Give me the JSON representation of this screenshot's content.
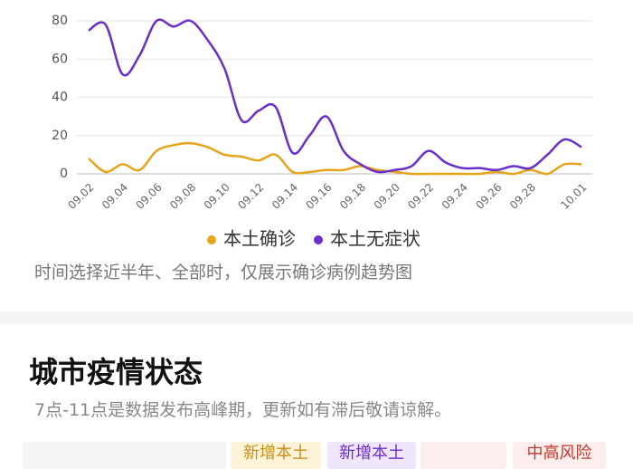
{
  "chart_data": {
    "type": "line",
    "categories": [
      "09.02",
      null,
      "09.04",
      null,
      "09.06",
      null,
      "09.08",
      null,
      "09.10",
      null,
      "09.12",
      null,
      "09.14",
      null,
      "09.16",
      null,
      "09.18",
      null,
      "09.20",
      null,
      "09.22",
      null,
      "09.24",
      null,
      "09.26",
      null,
      "09.28",
      null,
      null,
      "10.01"
    ],
    "series": [
      {
        "name": "本土确诊",
        "color": "#e6a519",
        "values": [
          8,
          1,
          5,
          2,
          12,
          15,
          16,
          14,
          10,
          9,
          7,
          10,
          1,
          1,
          2,
          2,
          4,
          2,
          1,
          0,
          0,
          0,
          0,
          0,
          1,
          0,
          2,
          0,
          5,
          5
        ]
      },
      {
        "name": "本土无症状",
        "color": "#6a2fc8",
        "values": [
          75,
          78,
          52,
          62,
          80,
          77,
          80,
          70,
          55,
          28,
          33,
          35,
          11,
          20,
          30,
          12,
          5,
          1,
          2,
          4,
          12,
          6,
          3,
          3,
          2,
          4,
          3,
          10,
          18,
          14
        ]
      }
    ],
    "ylim": [
      0,
      80
    ],
    "yticks": [
      0,
      20,
      40,
      60,
      80
    ],
    "grid": true
  },
  "note": "时间选择近半年、全部时，仅展示确诊病例趋势图",
  "section": {
    "title": "城市疫情状态",
    "subtitle": "7点-11点是数据发布高峰期，更新如有滞后敬请谅解。",
    "headers": [
      "新增本土",
      "新增本土",
      "中高风险"
    ]
  }
}
